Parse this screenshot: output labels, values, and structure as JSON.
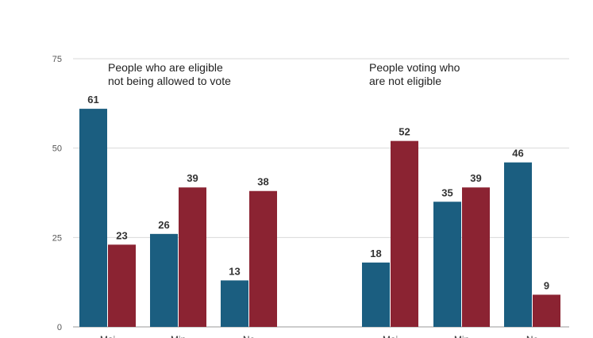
{
  "colors": {
    "series_a": "#1b5e80",
    "series_b": "#8b2332",
    "grid": "#d9d9d9",
    "baseline": "#9a9a9a"
  },
  "panels": [
    {
      "title": "People who are eligible\nnot being allowed to vote"
    },
    {
      "title": "People voting who\nare not eligible"
    }
  ],
  "chart_data": {
    "type": "bar",
    "y_ticks": [
      0,
      25,
      50,
      75
    ],
    "ylim": [
      0,
      75
    ],
    "grid": true,
    "panels": [
      {
        "title": "People who are eligible\nnot being allowed to vote",
        "categories": [
          "Maj",
          "Min",
          "No"
        ],
        "series": [
          {
            "values": [
              61,
              26,
              13
            ],
            "color": "#1b5e80"
          },
          {
            "values": [
              23,
              39,
              38
            ],
            "color": "#8b2332"
          }
        ]
      },
      {
        "title": "People voting who\nare not eligible",
        "categories": [
          "Maj",
          "Min",
          "No"
        ],
        "series": [
          {
            "values": [
              18,
              35,
              46
            ],
            "color": "#1b5e80"
          },
          {
            "values": [
              52,
              39,
              9
            ],
            "color": "#8b2332"
          }
        ]
      }
    ]
  }
}
